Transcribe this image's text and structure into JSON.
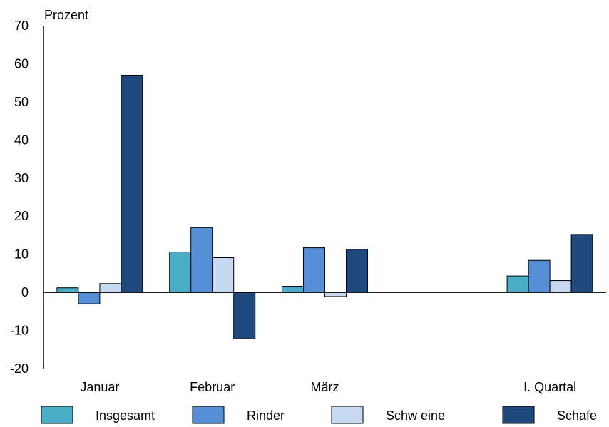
{
  "chart_data": {
    "type": "bar",
    "title": "",
    "xlabel": "",
    "ylabel": "Prozent",
    "ylim": [
      -20,
      70
    ],
    "yticks": [
      70,
      60,
      50,
      40,
      30,
      20,
      10,
      0,
      -10,
      -20
    ],
    "categories": [
      "Januar",
      "Februar",
      "März",
      "",
      "I. Quartal"
    ],
    "series": [
      {
        "name": "Insgesamt",
        "color": "#4BACC6",
        "values": [
          1.2,
          10.6,
          1.6,
          null,
          4.3
        ]
      },
      {
        "name": "Rinder",
        "color": "#558ED5",
        "values": [
          -3.0,
          17.0,
          11.7,
          null,
          8.4
        ]
      },
      {
        "name": "Schw eine",
        "color": "#C6D9F1",
        "values": [
          2.3,
          9.1,
          -1.1,
          null,
          3.1
        ]
      },
      {
        "name": "Schafe",
        "color": "#1F497D",
        "values": [
          57.0,
          -12.2,
          11.3,
          null,
          15.2
        ]
      }
    ],
    "grid": false,
    "legend_position": "bottom"
  }
}
